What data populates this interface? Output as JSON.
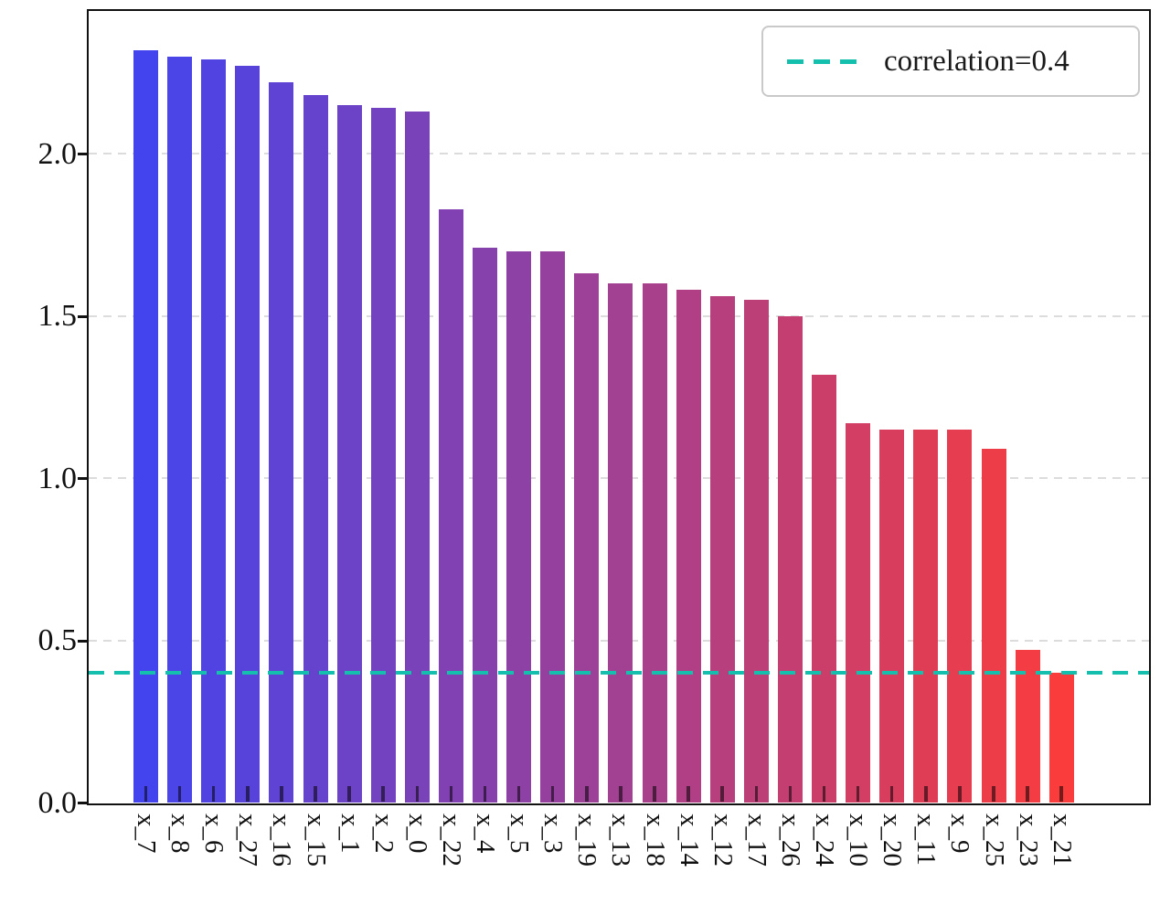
{
  "chart_data": {
    "type": "bar",
    "title": "",
    "xlabel": "",
    "ylabel": "",
    "categories": [
      "x_7",
      "x_8",
      "x_6",
      "x_27",
      "x_16",
      "x_15",
      "x_1",
      "x_2",
      "x_0",
      "x_22",
      "x_4",
      "x_5",
      "x_3",
      "x_19",
      "x_13",
      "x_18",
      "x_14",
      "x_12",
      "x_17",
      "x_26",
      "x_24",
      "x_10",
      "x_20",
      "x_11",
      "x_9",
      "x_25",
      "x_23",
      "x_21"
    ],
    "values": [
      2.32,
      2.3,
      2.29,
      2.27,
      2.22,
      2.18,
      2.15,
      2.14,
      2.13,
      1.83,
      1.71,
      1.7,
      1.7,
      1.63,
      1.6,
      1.6,
      1.58,
      1.56,
      1.55,
      1.5,
      1.32,
      1.17,
      1.15,
      1.15,
      1.15,
      1.09,
      0.47,
      0.4
    ],
    "ylim": [
      0,
      2.44
    ],
    "yticks": [
      0.0,
      0.5,
      1.0,
      1.5,
      2.0
    ],
    "ytick_labels": [
      "0.0",
      "0.5",
      "1.0",
      "1.5",
      "2.0"
    ],
    "xtick_rotation": 90,
    "grid": "horizontal-dashed",
    "grid_color": "#dcdcdc",
    "bar_color_start": "#4444ee",
    "bar_color_end": "#fa3c3c",
    "reference_line": {
      "value": 0.4,
      "color": "#14bfae",
      "style": "dashed",
      "label": "correlation=0.4"
    },
    "legend": {
      "position": "upper right",
      "entries": [
        {
          "label": "correlation=0.4",
          "color": "#14bfae",
          "line_style": "dashed"
        }
      ]
    }
  }
}
